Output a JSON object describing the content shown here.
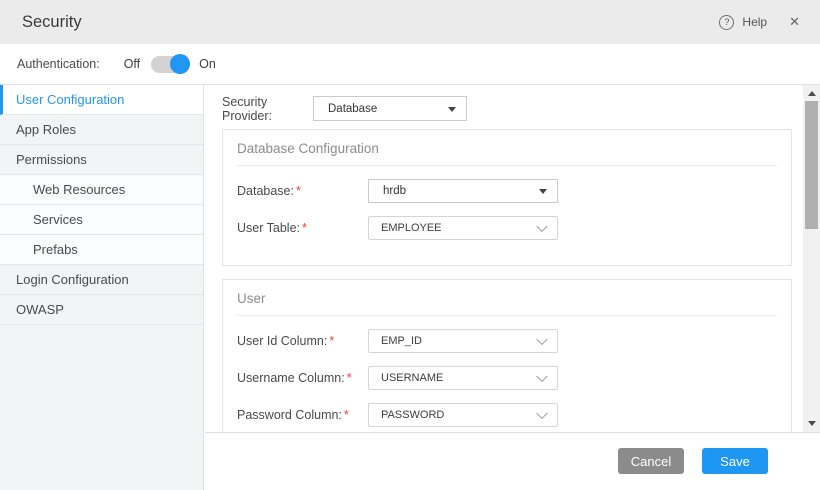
{
  "header": {
    "title": "Security",
    "help_label": "Help",
    "icons": {
      "help": "?",
      "close": "✕"
    }
  },
  "auth": {
    "label": "Authentication:",
    "off_label": "Off",
    "on_label": "On",
    "state": "on"
  },
  "sidebar": {
    "items": [
      {
        "label": "User Configuration",
        "active": true,
        "indent": false
      },
      {
        "label": "App Roles",
        "active": false,
        "indent": false
      },
      {
        "label": "Permissions",
        "active": false,
        "indent": false
      },
      {
        "label": "Web Resources",
        "active": false,
        "indent": true
      },
      {
        "label": "Services",
        "active": false,
        "indent": true
      },
      {
        "label": "Prefabs",
        "active": false,
        "indent": true
      },
      {
        "label": "Login Configuration",
        "active": false,
        "indent": false
      },
      {
        "label": "OWASP",
        "active": false,
        "indent": false
      }
    ]
  },
  "provider": {
    "label": "Security Provider:",
    "value": "Database"
  },
  "sections": [
    {
      "title": "Database Configuration",
      "fields": [
        {
          "label": "Database:",
          "required": true,
          "value": "hrdb",
          "style": "native"
        },
        {
          "label": "User Table:",
          "required": true,
          "value": "EMPLOYEE",
          "style": "chevron"
        }
      ]
    },
    {
      "title": "User",
      "fields": [
        {
          "label": "User Id Column:",
          "required": true,
          "value": "EMP_ID",
          "style": "chevron"
        },
        {
          "label": "Username Column:",
          "required": true,
          "value": "USERNAME",
          "style": "chevron"
        },
        {
          "label": "Password Column:",
          "required": true,
          "value": "PASSWORD",
          "style": "chevron"
        }
      ]
    }
  ],
  "footer": {
    "cancel_label": "Cancel",
    "save_label": "Save"
  },
  "colors": {
    "accent": "#2196f3",
    "save_bg": "#1e97f3",
    "cancel_bg": "#8b8b8b",
    "required": "#e8413d"
  }
}
